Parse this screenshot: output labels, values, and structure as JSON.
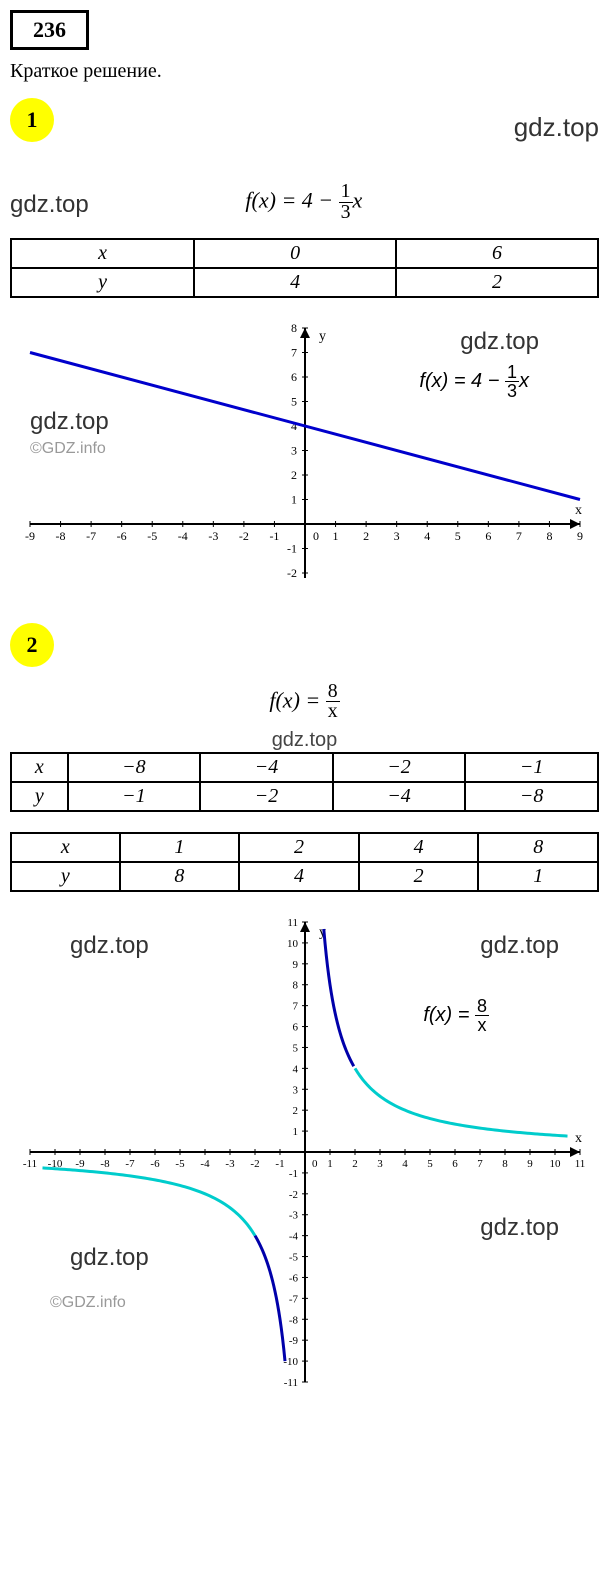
{
  "problem_number": "236",
  "subtitle": "Краткое решение.",
  "watermarks": {
    "main": "gdz.top",
    "copyright": "©GDZ.info"
  },
  "section1": {
    "badge": "1",
    "formula": {
      "prefix": "f(x) = 4 − ",
      "num": "1",
      "den": "3",
      "suffix": "x"
    },
    "table": {
      "headers": [
        "x",
        "0",
        "6"
      ],
      "row": [
        "y",
        "4",
        "2"
      ]
    },
    "chart": {
      "xlim": [
        -9,
        9
      ],
      "ylim": [
        -2,
        8
      ],
      "xtick_step": 1,
      "ytick_step": 1,
      "line_color": "#0000cc",
      "line_width": 3,
      "axis_color": "#000000",
      "label_color": "#000000",
      "bg": "#ffffff",
      "xlabel": "x",
      "ylabel": "y",
      "line": {
        "x1": -9,
        "y1": 7,
        "x2": 9,
        "y2": 1
      }
    }
  },
  "section2": {
    "badge": "2",
    "formula": {
      "prefix": "f(x) = ",
      "num": "8",
      "den": "x"
    },
    "table1": {
      "headers": [
        "x",
        "−8",
        "−4",
        "−2",
        "−1"
      ],
      "row": [
        "y",
        "−1",
        "−2",
        "−4",
        "−8"
      ]
    },
    "table2": {
      "headers": [
        "x",
        "1",
        "2",
        "4",
        "8"
      ],
      "row": [
        "y",
        "8",
        "4",
        "2",
        "1"
      ]
    },
    "chart": {
      "xlim": [
        -11,
        11
      ],
      "ylim": [
        -11,
        11
      ],
      "xtick_step": 1,
      "ytick_step": 1,
      "axis_color": "#000000",
      "bg": "#ffffff",
      "xlabel": "x",
      "ylabel": "y",
      "curves": {
        "dark_blue": "#0000aa",
        "cyan": "#00cccc",
        "line_width": 3
      }
    }
  }
}
